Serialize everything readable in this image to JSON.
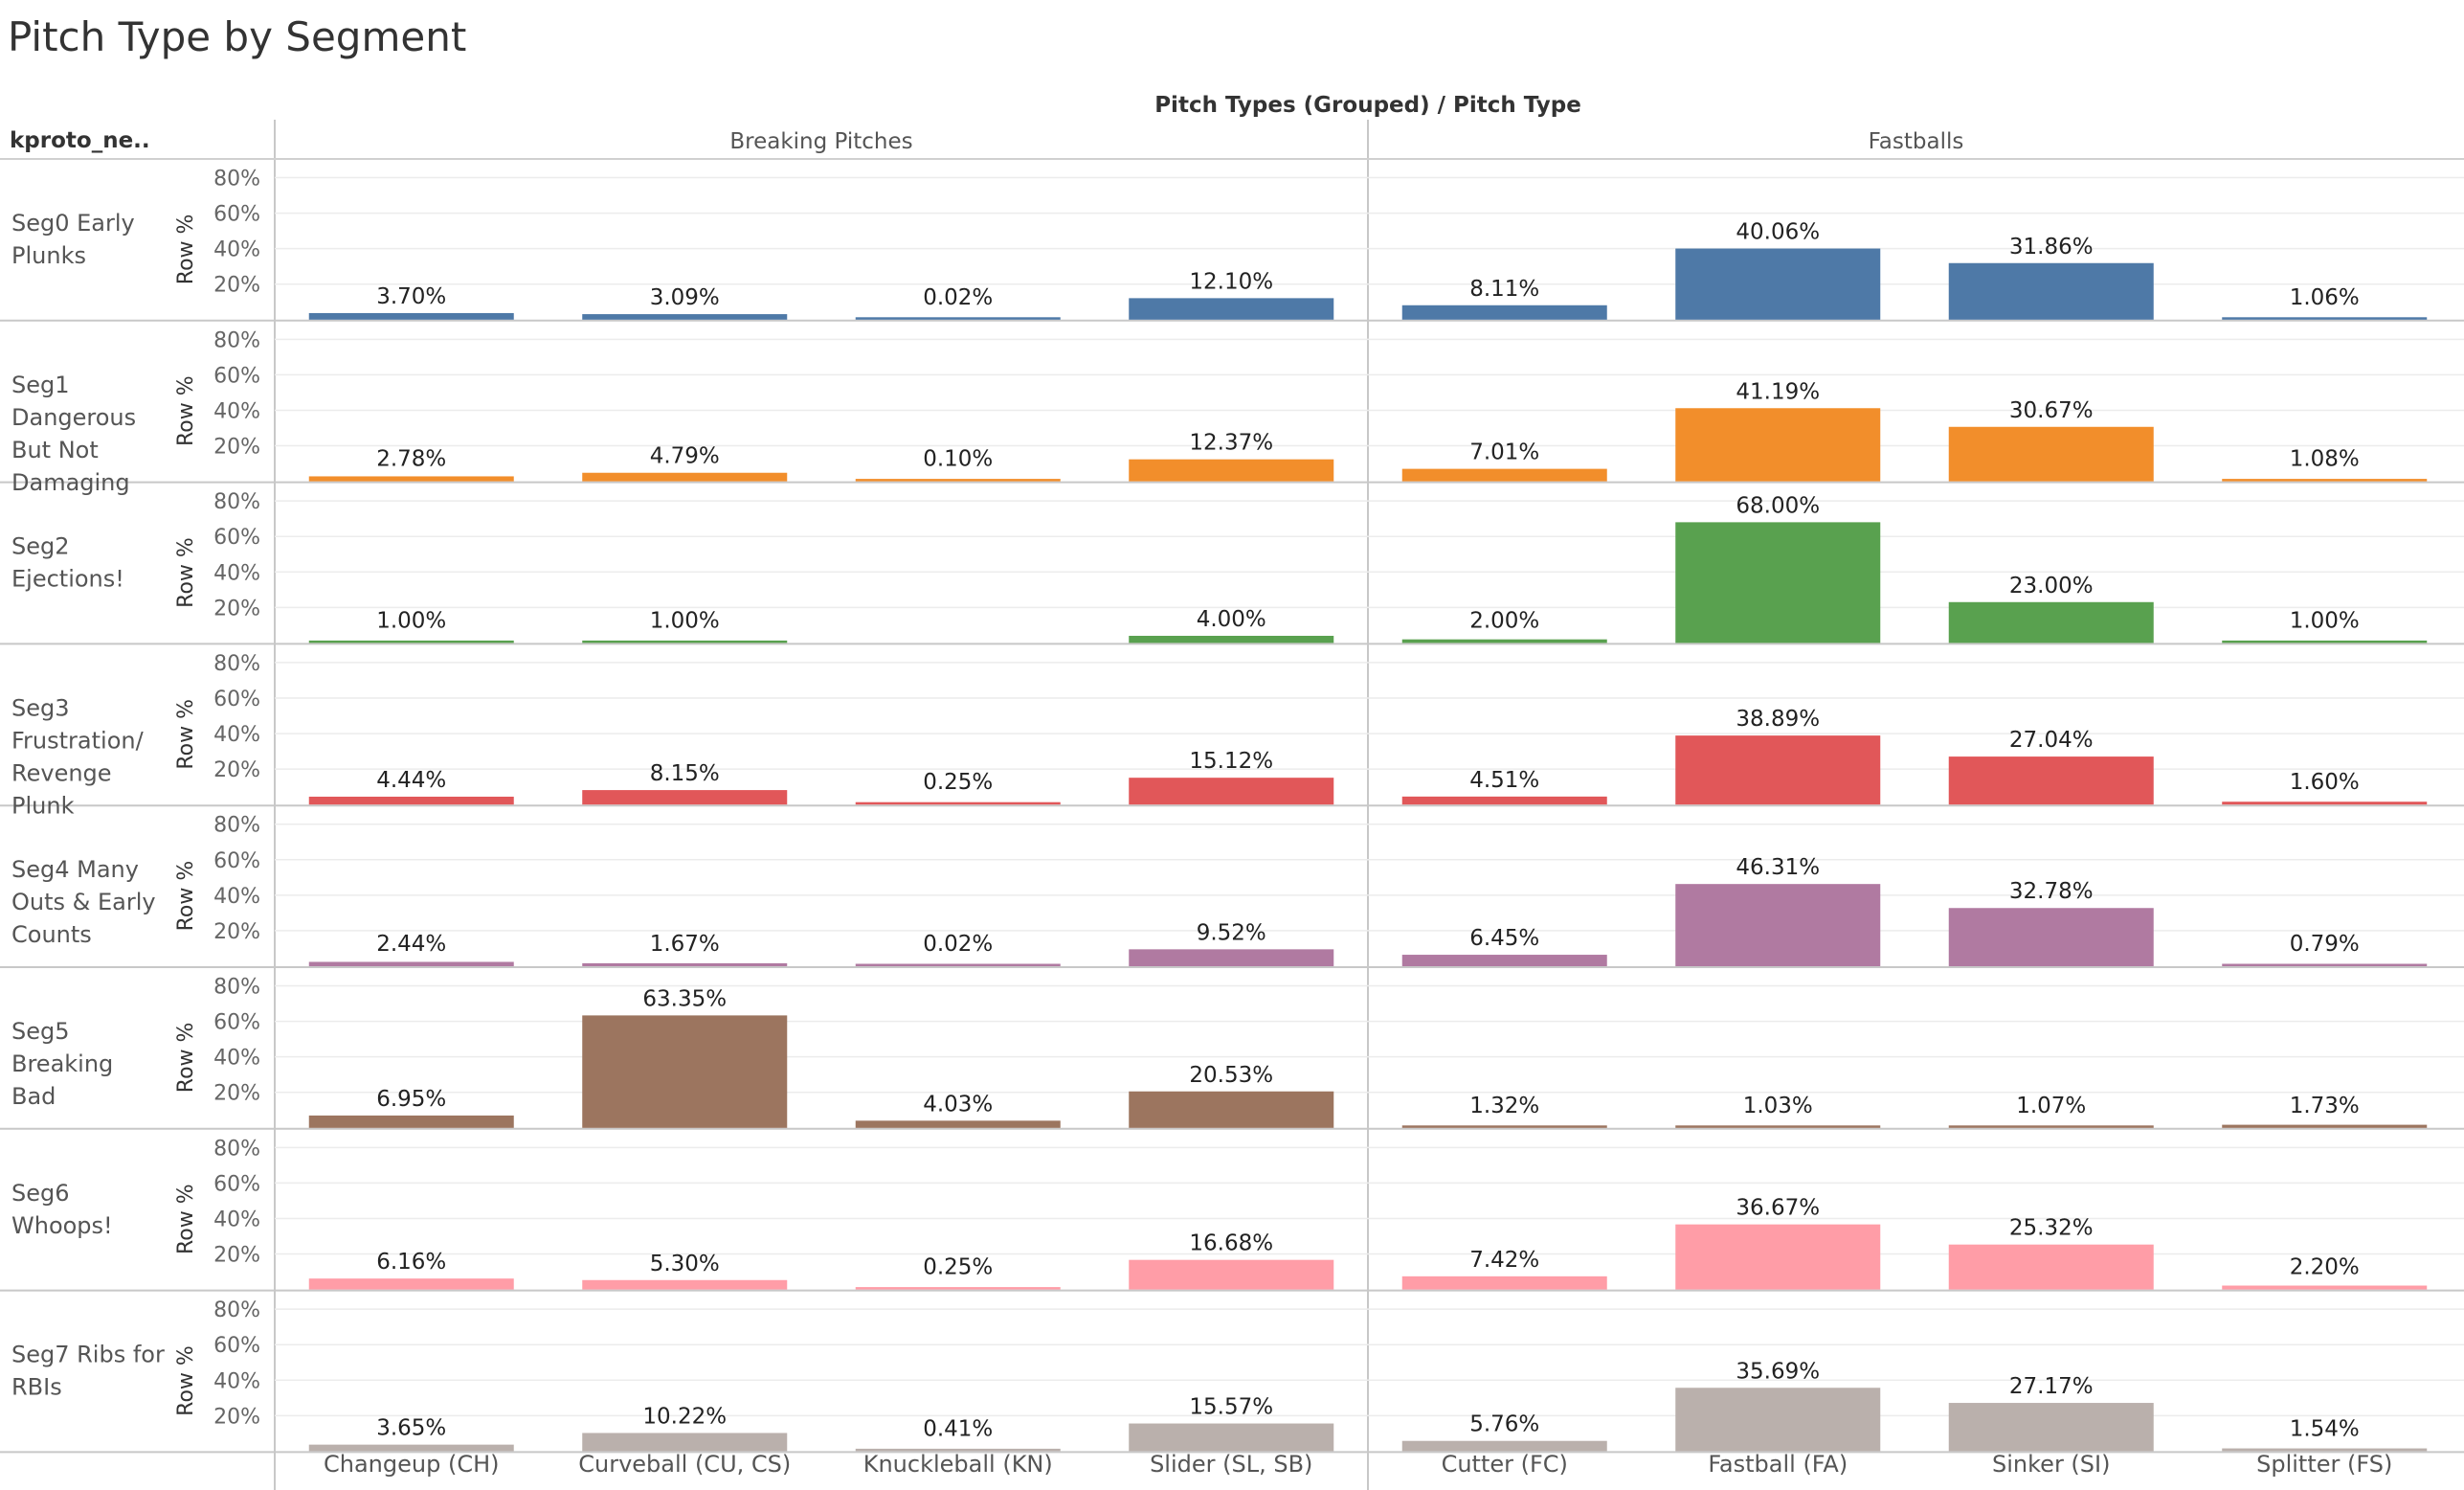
{
  "title": "Pitch Type by Segment",
  "column_field_label": "Pitch Types (Grouped)  /  Pitch Type",
  "row_field_label": "kproto_ne..",
  "measure_label": "Row %",
  "y_ticks": [
    "80%",
    "60%",
    "40%",
    "20%"
  ],
  "groups": [
    {
      "name": "Breaking Pitches",
      "pitch_types": [
        "Changeup (CH)",
        "Curveball (CU, CS)",
        "Knuckleball (KN)",
        "Slider (SL, SB)"
      ]
    },
    {
      "name": "Fastballs",
      "pitch_types": [
        "Cutter (FC)",
        "Fastball (FA)",
        "Sinker (SI)",
        "Splitter (FS)"
      ]
    }
  ],
  "segments": [
    {
      "label_lines": [
        "Seg0 Early",
        "Plunks"
      ],
      "color": "#4e79a7",
      "values": [
        3.7,
        3.09,
        0.02,
        12.1,
        8.11,
        40.06,
        31.86,
        1.06
      ],
      "labels": [
        "3.70%",
        "3.09%",
        "0.02%",
        "12.10%",
        "8.11%",
        "40.06%",
        "31.86%",
        "1.06%"
      ]
    },
    {
      "label_lines": [
        "Seg1",
        "Dangerous",
        "But Not",
        "Damaging"
      ],
      "color": "#f28e2b",
      "values": [
        2.78,
        4.79,
        0.1,
        12.37,
        7.01,
        41.19,
        30.67,
        1.08
      ],
      "labels": [
        "2.78%",
        "4.79%",
        "0.10%",
        "12.37%",
        "7.01%",
        "41.19%",
        "30.67%",
        "1.08%"
      ]
    },
    {
      "label_lines": [
        "Seg2",
        "Ejections!"
      ],
      "color": "#59a14f",
      "values": [
        1.0,
        1.0,
        null,
        4.0,
        2.0,
        68.0,
        23.0,
        1.0
      ],
      "labels": [
        "1.00%",
        "1.00%",
        "",
        "4.00%",
        "2.00%",
        "68.00%",
        "23.00%",
        "1.00%"
      ]
    },
    {
      "label_lines": [
        "Seg3",
        "Frustration/",
        "Revenge",
        "Plunk"
      ],
      "color": "#e15759",
      "values": [
        4.44,
        8.15,
        0.25,
        15.12,
        4.51,
        38.89,
        27.04,
        1.6
      ],
      "labels": [
        "4.44%",
        "8.15%",
        "0.25%",
        "15.12%",
        "4.51%",
        "38.89%",
        "27.04%",
        "1.60%"
      ]
    },
    {
      "label_lines": [
        "Seg4 Many",
        "Outs & Early",
        "Counts"
      ],
      "color": "#b07aa1",
      "values": [
        2.44,
        1.67,
        0.02,
        9.52,
        6.45,
        46.31,
        32.78,
        0.79
      ],
      "labels": [
        "2.44%",
        "1.67%",
        "0.02%",
        "9.52%",
        "6.45%",
        "46.31%",
        "32.78%",
        "0.79%"
      ]
    },
    {
      "label_lines": [
        "Seg5",
        "Breaking",
        "Bad"
      ],
      "color": "#9c755f",
      "values": [
        6.95,
        63.35,
        4.03,
        20.53,
        1.32,
        1.03,
        1.07,
        1.73
      ],
      "labels": [
        "6.95%",
        "63.35%",
        "4.03%",
        "20.53%",
        "1.32%",
        "1.03%",
        "1.07%",
        "1.73%"
      ]
    },
    {
      "label_lines": [
        "Seg6",
        "Whoops!"
      ],
      "color": "#ff9da7",
      "values": [
        6.16,
        5.3,
        0.25,
        16.68,
        7.42,
        36.67,
        25.32,
        2.2
      ],
      "labels": [
        "6.16%",
        "5.30%",
        "0.25%",
        "16.68%",
        "7.42%",
        "36.67%",
        "25.32%",
        "2.20%"
      ]
    },
    {
      "label_lines": [
        "Seg7 Ribs for",
        "RBIs"
      ],
      "color": "#bab0ac",
      "values": [
        3.65,
        10.22,
        0.41,
        15.57,
        5.76,
        35.69,
        27.17,
        1.54
      ],
      "labels": [
        "3.65%",
        "10.22%",
        "0.41%",
        "15.57%",
        "5.76%",
        "35.69%",
        "27.17%",
        "1.54%"
      ]
    }
  ],
  "chart_data": {
    "type": "bar",
    "title": "Pitch Type by Segment",
    "ylabel": "Row %",
    "ylim": [
      0,
      90
    ],
    "grid": true,
    "categories": [
      "Changeup (CH)",
      "Curveball (CU, CS)",
      "Knuckleball (KN)",
      "Slider (SL, SB)",
      "Cutter (FC)",
      "Fastball (FA)",
      "Sinker (SI)",
      "Splitter (FS)"
    ],
    "category_groups": [
      {
        "name": "Breaking Pitches",
        "categories": [
          "Changeup (CH)",
          "Curveball (CU, CS)",
          "Knuckleball (KN)",
          "Slider (SL, SB)"
        ]
      },
      {
        "name": "Fastballs",
        "categories": [
          "Cutter (FC)",
          "Fastball (FA)",
          "Sinker (SI)",
          "Splitter (FS)"
        ]
      }
    ],
    "series": [
      {
        "name": "Seg0 Early Plunks",
        "values": [
          3.7,
          3.09,
          0.02,
          12.1,
          8.11,
          40.06,
          31.86,
          1.06
        ]
      },
      {
        "name": "Seg1 Dangerous But Not Damaging",
        "values": [
          2.78,
          4.79,
          0.1,
          12.37,
          7.01,
          41.19,
          30.67,
          1.08
        ]
      },
      {
        "name": "Seg2 Ejections!",
        "values": [
          1.0,
          1.0,
          null,
          4.0,
          2.0,
          68.0,
          23.0,
          1.0
        ]
      },
      {
        "name": "Seg3 Frustration/ Revenge Plunk",
        "values": [
          4.44,
          8.15,
          0.25,
          15.12,
          4.51,
          38.89,
          27.04,
          1.6
        ]
      },
      {
        "name": "Seg4 Many Outs & Early Counts",
        "values": [
          2.44,
          1.67,
          0.02,
          9.52,
          6.45,
          46.31,
          32.78,
          0.79
        ]
      },
      {
        "name": "Seg5 Breaking Bad",
        "values": [
          6.95,
          63.35,
          4.03,
          20.53,
          1.32,
          1.03,
          1.07,
          1.73
        ]
      },
      {
        "name": "Seg6 Whoops!",
        "values": [
          6.16,
          5.3,
          0.25,
          16.68,
          7.42,
          36.67,
          25.32,
          2.2
        ]
      },
      {
        "name": "Seg7 Ribs for RBIs",
        "values": [
          3.65,
          10.22,
          0.41,
          15.57,
          5.76,
          35.69,
          27.17,
          1.54
        ]
      }
    ]
  }
}
